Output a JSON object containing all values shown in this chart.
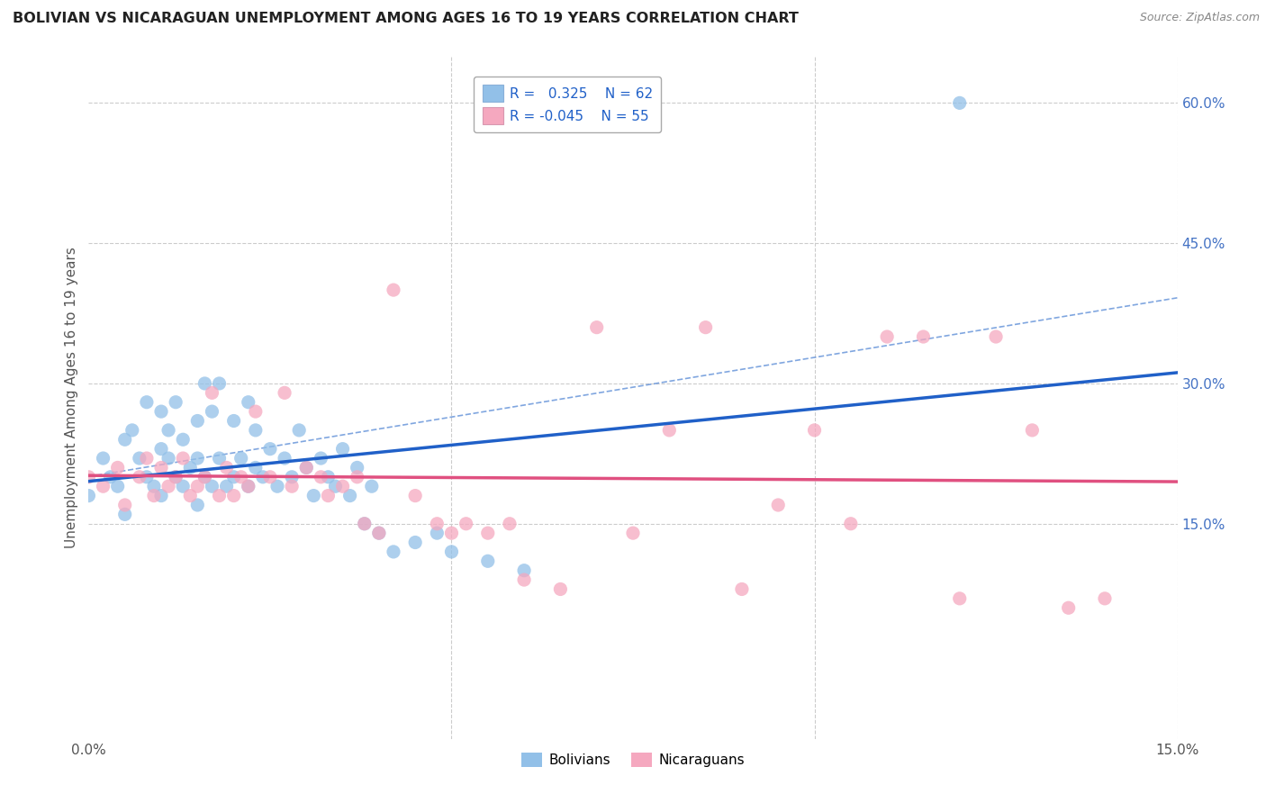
{
  "title": "BOLIVIAN VS NICARAGUAN UNEMPLOYMENT AMONG AGES 16 TO 19 YEARS CORRELATION CHART",
  "source": "Source: ZipAtlas.com",
  "ylabel": "Unemployment Among Ages 16 to 19 years",
  "xlabel_bolivians": "Bolivians",
  "xlabel_nicaraguans": "Nicaraguans",
  "xlim": [
    0.0,
    0.15
  ],
  "ylim": [
    -0.08,
    0.65
  ],
  "bolivia_color": "#92c0e8",
  "nicaragua_color": "#f5a8bf",
  "bolivia_line_color": "#2060c8",
  "nicaragua_line_color": "#e05080",
  "ci_line_color": "#6090d8",
  "R_bolivia": 0.325,
  "N_bolivia": 62,
  "R_nicaragua": -0.045,
  "N_nicaragua": 55,
  "bolivia_scatter_x": [
    0.0,
    0.002,
    0.003,
    0.004,
    0.005,
    0.005,
    0.006,
    0.007,
    0.008,
    0.008,
    0.009,
    0.01,
    0.01,
    0.01,
    0.011,
    0.011,
    0.012,
    0.012,
    0.013,
    0.013,
    0.014,
    0.015,
    0.015,
    0.015,
    0.016,
    0.016,
    0.017,
    0.017,
    0.018,
    0.018,
    0.019,
    0.02,
    0.02,
    0.021,
    0.022,
    0.022,
    0.023,
    0.023,
    0.024,
    0.025,
    0.026,
    0.027,
    0.028,
    0.029,
    0.03,
    0.031,
    0.032,
    0.033,
    0.034,
    0.035,
    0.036,
    0.037,
    0.038,
    0.039,
    0.04,
    0.042,
    0.045,
    0.048,
    0.05,
    0.055,
    0.06,
    0.12
  ],
  "bolivia_scatter_y": [
    0.18,
    0.22,
    0.2,
    0.19,
    0.16,
    0.24,
    0.25,
    0.22,
    0.2,
    0.28,
    0.19,
    0.23,
    0.27,
    0.18,
    0.22,
    0.25,
    0.2,
    0.28,
    0.19,
    0.24,
    0.21,
    0.17,
    0.22,
    0.26,
    0.2,
    0.3,
    0.19,
    0.27,
    0.22,
    0.3,
    0.19,
    0.2,
    0.26,
    0.22,
    0.19,
    0.28,
    0.21,
    0.25,
    0.2,
    0.23,
    0.19,
    0.22,
    0.2,
    0.25,
    0.21,
    0.18,
    0.22,
    0.2,
    0.19,
    0.23,
    0.18,
    0.21,
    0.15,
    0.19,
    0.14,
    0.12,
    0.13,
    0.14,
    0.12,
    0.11,
    0.1,
    0.6
  ],
  "nicaragua_scatter_x": [
    0.0,
    0.002,
    0.004,
    0.005,
    0.007,
    0.008,
    0.009,
    0.01,
    0.011,
    0.012,
    0.013,
    0.014,
    0.015,
    0.016,
    0.017,
    0.018,
    0.019,
    0.02,
    0.021,
    0.022,
    0.023,
    0.025,
    0.027,
    0.028,
    0.03,
    0.032,
    0.033,
    0.035,
    0.037,
    0.038,
    0.04,
    0.042,
    0.045,
    0.048,
    0.05,
    0.052,
    0.055,
    0.058,
    0.06,
    0.065,
    0.07,
    0.075,
    0.08,
    0.085,
    0.09,
    0.095,
    0.1,
    0.105,
    0.11,
    0.115,
    0.12,
    0.125,
    0.13,
    0.135,
    0.14
  ],
  "nicaragua_scatter_y": [
    0.2,
    0.19,
    0.21,
    0.17,
    0.2,
    0.22,
    0.18,
    0.21,
    0.19,
    0.2,
    0.22,
    0.18,
    0.19,
    0.2,
    0.29,
    0.18,
    0.21,
    0.18,
    0.2,
    0.19,
    0.27,
    0.2,
    0.29,
    0.19,
    0.21,
    0.2,
    0.18,
    0.19,
    0.2,
    0.15,
    0.14,
    0.4,
    0.18,
    0.15,
    0.14,
    0.15,
    0.14,
    0.15,
    0.09,
    0.08,
    0.36,
    0.14,
    0.25,
    0.36,
    0.08,
    0.17,
    0.25,
    0.15,
    0.35,
    0.35,
    0.07,
    0.35,
    0.25,
    0.06,
    0.07
  ],
  "background_color": "#ffffff",
  "grid_color": "#cccccc"
}
